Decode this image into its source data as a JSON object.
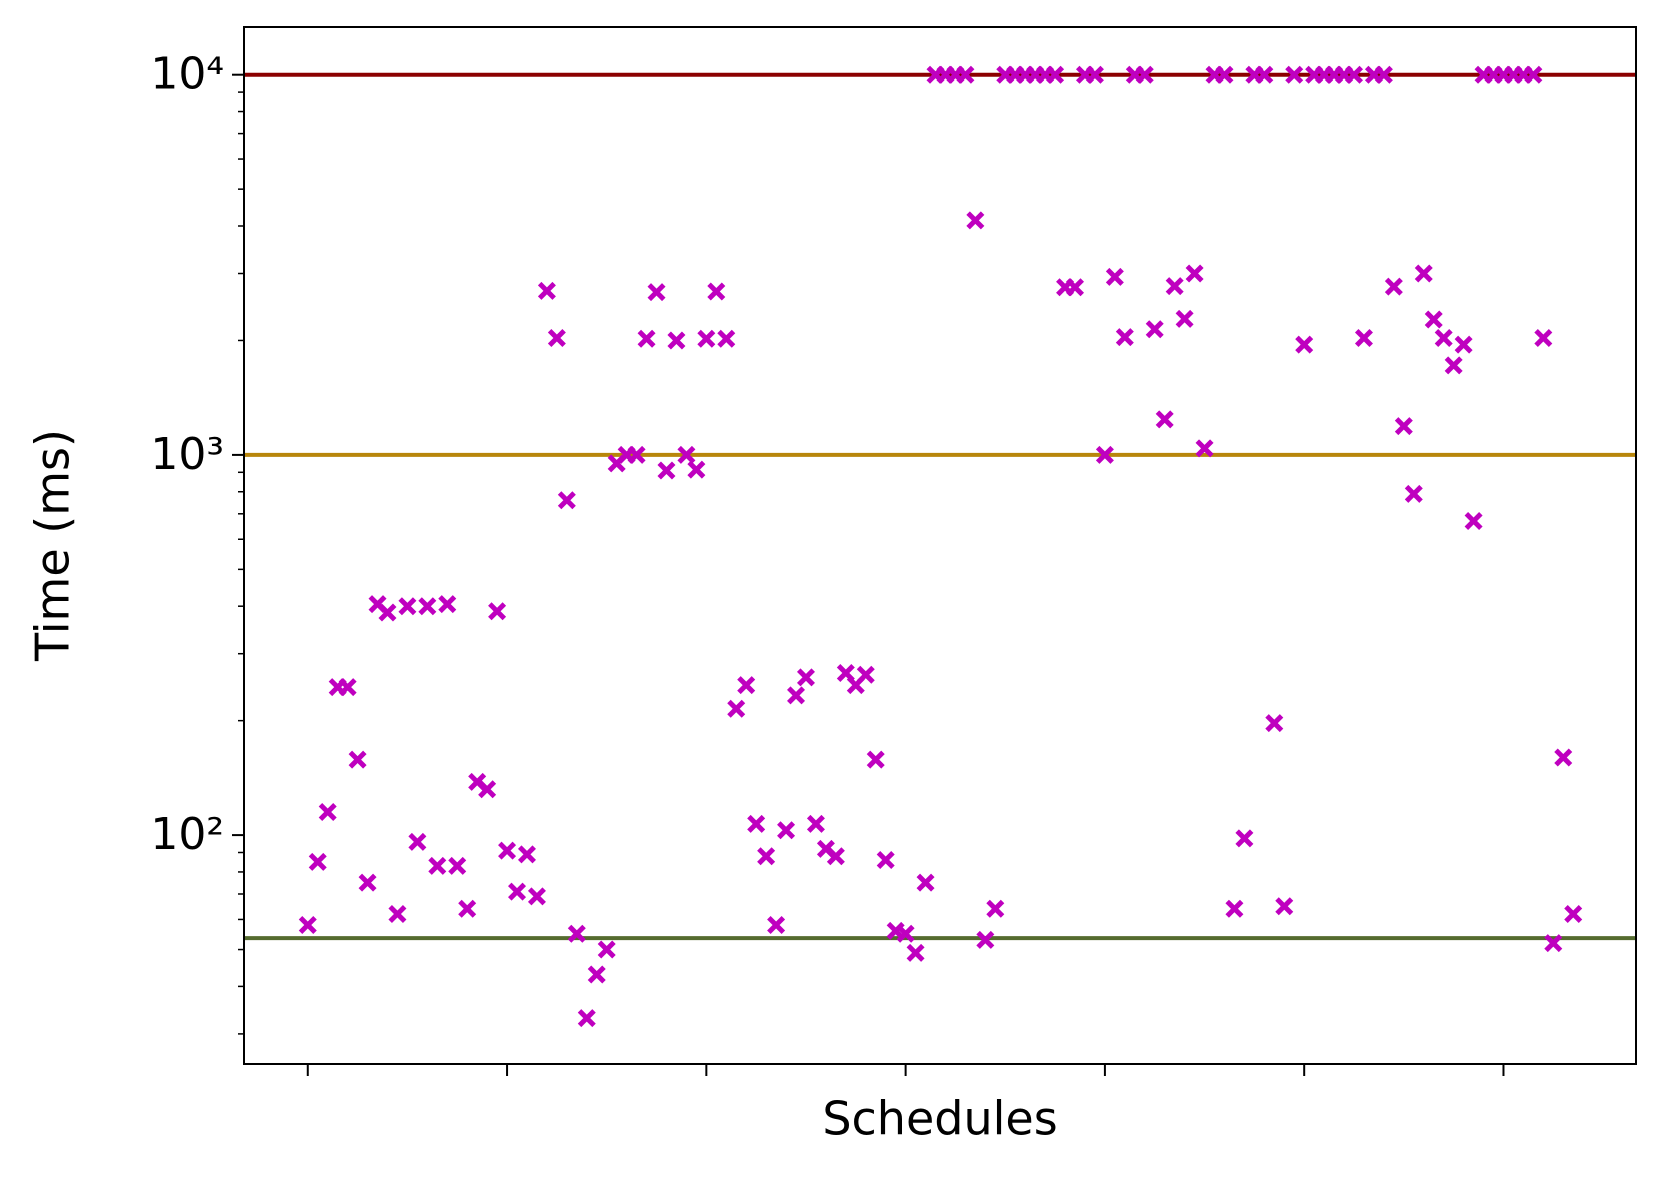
{
  "chart_data": {
    "type": "scatter",
    "xlabel": "Schedules",
    "ylabel": "Time (ms)",
    "color": "#bf00bf",
    "marker": "X",
    "yscale": "log",
    "x": [
      0,
      1,
      2,
      3,
      4,
      5,
      6,
      7,
      8,
      9,
      10,
      11,
      12,
      13,
      14,
      15,
      16,
      17,
      18,
      19,
      20,
      21,
      22,
      23,
      24,
      25,
      26,
      27,
      28,
      29,
      30,
      31,
      32,
      33,
      34,
      35,
      36,
      37,
      38,
      39,
      40,
      41,
      42,
      43,
      44,
      45,
      46,
      47,
      48,
      49,
      50,
      51,
      52,
      53,
      54,
      55,
      56,
      57,
      58,
      59,
      60,
      61,
      62,
      63,
      64,
      65,
      66,
      67,
      68,
      69,
      70,
      71,
      72,
      73,
      74,
      75,
      76,
      77,
      78,
      79,
      80,
      81,
      82,
      83,
      84,
      85,
      86,
      87,
      88,
      89,
      90,
      91,
      92,
      93,
      94,
      95,
      96,
      97,
      98,
      99,
      100,
      101,
      102,
      103,
      104,
      105,
      106,
      107,
      108,
      109,
      110,
      111,
      112,
      113,
      114,
      115,
      116,
      117,
      118,
      119,
      120,
      121,
      122,
      123,
      124,
      125,
      126,
      127
    ],
    "values": [
      58,
      85,
      115,
      245,
      245,
      158,
      75,
      405,
      385,
      62,
      400,
      96,
      400,
      83,
      405,
      83,
      64,
      138,
      132,
      388,
      91,
      71,
      89,
      69,
      2700,
      2030,
      760,
      55,
      33,
      43,
      50,
      950,
      1000,
      1000,
      2020,
      2680,
      910,
      2000,
      1000,
      915,
      2020,
      2690,
      2020,
      215,
      248,
      107,
      88,
      58,
      103,
      233,
      260,
      107,
      92,
      88,
      267,
      248,
      264,
      158,
      86,
      56,
      55,
      49,
      75,
      10000,
      10000,
      10000,
      10000,
      4140,
      53,
      64,
      10000,
      10000,
      10000,
      10000,
      10000,
      10000,
      2760,
      2760,
      10000,
      10000,
      1000,
      2940,
      2040,
      10000,
      10000,
      2140,
      1240,
      2780,
      2280,
      3000,
      1040,
      10000,
      10000,
      64,
      98,
      10000,
      10000,
      197,
      65,
      10000,
      1950,
      10000,
      10000,
      10000,
      10000,
      10000,
      2030,
      10000,
      10000,
      2770,
      1190,
      790,
      3000,
      2270,
      2030,
      1720,
      1950,
      670,
      10000,
      10000,
      10000,
      10000,
      10000,
      10000,
      2030,
      52,
      160,
      62
    ],
    "xlim": [
      -6.4,
      133.3
    ],
    "xticks": [
      0,
      20,
      40,
      60,
      80,
      100,
      120
    ],
    "ylim": [
      25,
      13350
    ],
    "yticks": [
      {
        "value": 100,
        "label": "10²"
      },
      {
        "value": 1000,
        "label": "10³"
      },
      {
        "value": 10000,
        "label": "10⁴"
      }
    ],
    "yminor_ticks": [
      30,
      40,
      50,
      60,
      70,
      80,
      90,
      200,
      300,
      400,
      500,
      600,
      700,
      800,
      900,
      2000,
      3000,
      4000,
      5000,
      6000,
      7000,
      8000,
      9000
    ],
    "hlines": [
      {
        "value": 10000,
        "color": "#8b0000"
      },
      {
        "value": 1000,
        "color": "#b8860b"
      },
      {
        "value": 53.6,
        "color": "#556b2f"
      }
    ],
    "grid": false
  }
}
